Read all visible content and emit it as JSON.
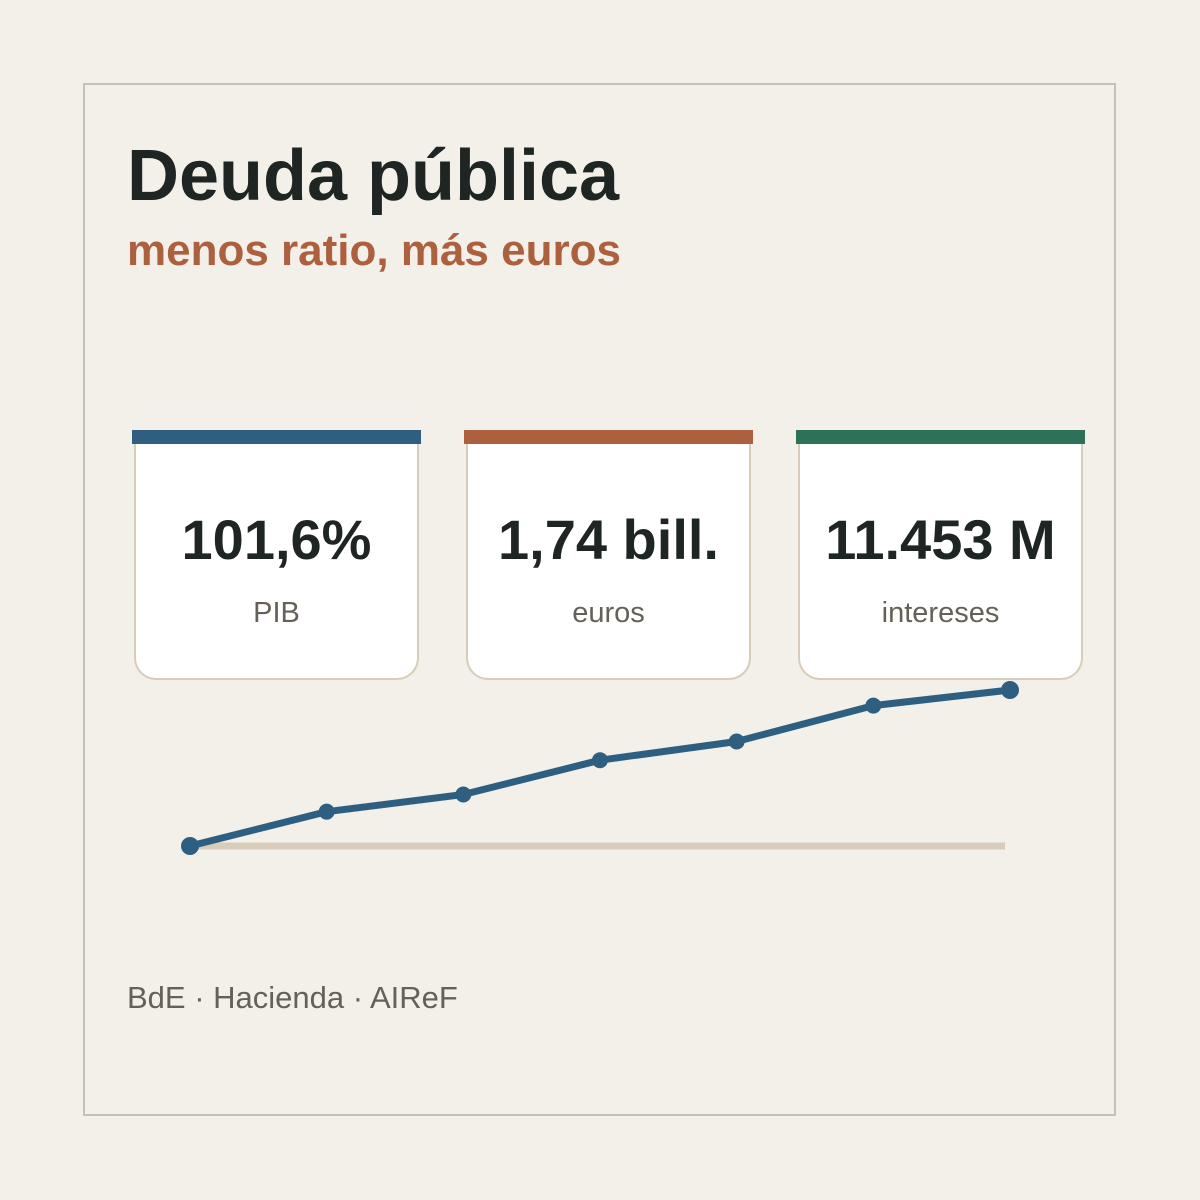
{
  "title": "Deuda pública",
  "subtitle": "menos ratio, más euros",
  "cards": [
    {
      "value": "101,6%",
      "label": "PIB",
      "accent": "#2f5f80"
    },
    {
      "value": "1,74 bill.",
      "label": "euros",
      "accent": "#ac603e"
    },
    {
      "value": "11.453 M",
      "label": "intereses",
      "accent": "#2e7058"
    }
  ],
  "source": "BdE · Hacienda · AIReF",
  "colors": {
    "line": "#2f5f80",
    "baseline": "#d8ccbb",
    "frame": "#c9bfb2",
    "background": "#f3f0ea"
  },
  "chart_data": {
    "type": "line",
    "title": "",
    "xlabel": "",
    "ylabel": "",
    "x": [
      0,
      1,
      2,
      3,
      4,
      5,
      6
    ],
    "values": [
      0,
      0.22,
      0.33,
      0.55,
      0.67,
      0.9,
      1.0
    ],
    "ylim": [
      0,
      1
    ],
    "grid": false,
    "baseline": true,
    "markers": true
  }
}
